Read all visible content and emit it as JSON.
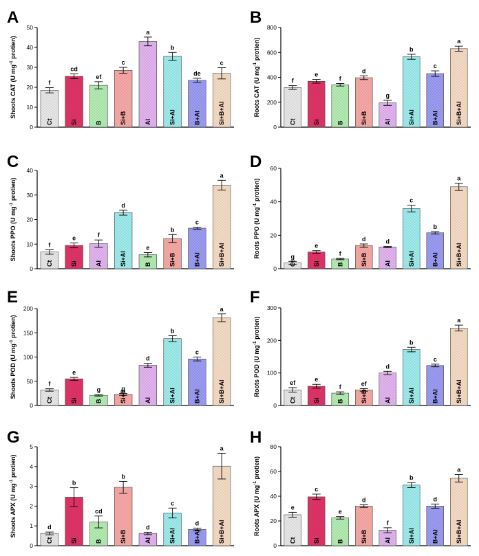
{
  "styles": {
    "Ct": {
      "fill": "#e8e8e8",
      "dot": "#9a9a9a"
    },
    "Si": {
      "fill": "#e03468",
      "dot": "#a01f46"
    },
    "B": {
      "fill": "#b6ecb6",
      "dot": "#5fa85f"
    },
    "Si+B": {
      "fill": "#f4aaa6",
      "dot": "#c86a66"
    },
    "Al": {
      "fill": "#e2b6ef",
      "dot": "#9a6aae"
    },
    "Si+Al": {
      "fill": "#a4ecec",
      "dot": "#3fa0a0"
    },
    "B+Al": {
      "fill": "#9e9ef2",
      "dot": "#5454b4"
    },
    "Si+B+Al": {
      "fill": "#f4dcc6",
      "dot": "#b89676"
    }
  },
  "chart_data": [
    {
      "panel": "A",
      "type": "bar",
      "ylabel_main": "Shoots CAT (U mg",
      "ylabel_sup": "-1",
      "ylabel_tail": " protien)",
      "ylim": [
        0,
        50
      ],
      "yticks": [
        0,
        10,
        20,
        30,
        40,
        50
      ],
      "categories": [
        "Ct",
        "Si",
        "B",
        "Si+B",
        "Al",
        "Si+Al",
        "B+Al",
        "Si+B+Al"
      ],
      "values": [
        18.5,
        25.5,
        21,
        28.5,
        43,
        35.5,
        23.5,
        27
      ],
      "errors": [
        1.3,
        1.2,
        1.8,
        1.5,
        2.2,
        2.0,
        1.0,
        2.8
      ],
      "letters": [
        "f",
        "cd",
        "ef",
        "c",
        "a",
        "b",
        "de",
        "c"
      ]
    },
    {
      "panel": "B",
      "type": "bar",
      "ylabel_main": "Roots CAT (U mg",
      "ylabel_sup": "-1",
      "ylabel_tail": " protien)",
      "ylim": [
        0,
        800
      ],
      "yticks": [
        0,
        200,
        400,
        600,
        800
      ],
      "categories": [
        "Ct",
        "Si",
        "B",
        "Si+B",
        "Al",
        "Si+Al",
        "B+Al",
        "Si+B+Al"
      ],
      "values": [
        318,
        368,
        340,
        397,
        195,
        565,
        430,
        630
      ],
      "errors": [
        15,
        15,
        10,
        15,
        20,
        20,
        22,
        20
      ],
      "letters": [
        "f",
        "e",
        "f",
        "d",
        "g",
        "b",
        "c",
        "a"
      ]
    },
    {
      "panel": "C",
      "type": "bar",
      "ylabel_main": "Shoots PPO (U mg",
      "ylabel_sup": "-1",
      "ylabel_tail": " protien)",
      "ylim": [
        0,
        40
      ],
      "yticks": [
        0,
        10,
        20,
        30,
        40
      ],
      "categories": [
        "Ct",
        "Si",
        "Al",
        "Si+Al",
        "B",
        "Si+B",
        "B+Al",
        "Si+B+Al"
      ],
      "values": [
        6.8,
        9.5,
        10.2,
        22.8,
        5.7,
        12.3,
        16.5,
        34
      ],
      "errors": [
        0.9,
        1.0,
        1.5,
        1.0,
        0.9,
        1.6,
        0.4,
        2.0
      ],
      "letters": [
        "f",
        "e",
        "f",
        "d",
        "e",
        "b",
        "c",
        "a"
      ]
    },
    {
      "panel": "D",
      "type": "bar",
      "ylabel_main": "Roots PPO (U mg",
      "ylabel_sup": "-1",
      "ylabel_tail": " protien)",
      "ylim": [
        0,
        60
      ],
      "yticks": [
        0,
        20,
        40,
        60
      ],
      "categories": [
        "Ct",
        "Si",
        "B",
        "Si+B",
        "Al",
        "Si+Al",
        "B+Al",
        "Si+B+Al"
      ],
      "values": [
        3.5,
        10,
        5.8,
        13.8,
        13,
        36,
        21.5,
        49
      ],
      "errors": [
        0.9,
        0.8,
        0.4,
        1.0,
        0.4,
        2.0,
        0.7,
        2.2
      ],
      "letters": [
        "g",
        "e",
        "f",
        "d",
        "d",
        "c",
        "b",
        "a"
      ]
    },
    {
      "panel": "E",
      "type": "bar",
      "ylabel_main": "Shoots POD (U mg",
      "ylabel_sup": "-1",
      "ylabel_tail": " protien)",
      "ylim": [
        0,
        200
      ],
      "yticks": [
        0,
        50,
        100,
        150,
        200
      ],
      "categories": [
        "Ct",
        "Si",
        "B",
        "Si+B",
        "Al",
        "Si+Al",
        "B+Al",
        "Si+B+Al"
      ],
      "values": [
        32,
        55,
        21,
        23,
        83,
        138,
        96,
        181
      ],
      "errors": [
        2.5,
        3,
        1.5,
        2,
        4,
        6,
        4,
        8
      ],
      "letters": [
        "f",
        "e",
        "g",
        "g",
        "d",
        "b",
        "c",
        "a"
      ]
    },
    {
      "panel": "F",
      "type": "bar",
      "ylabel_main": "Roots POD (U mg",
      "ylabel_sup": "-1",
      "ylabel_tail": " protien)",
      "ylim": [
        0,
        300
      ],
      "yticks": [
        0,
        100,
        200,
        300
      ],
      "categories": [
        "Ct",
        "Si",
        "B",
        "Si+B",
        "Al",
        "Si+Al",
        "B+Al",
        "Si+B+Al"
      ],
      "values": [
        48,
        59,
        38,
        48,
        100,
        172,
        123,
        238
      ],
      "errors": [
        7,
        6,
        4,
        4,
        5,
        7,
        4,
        9
      ],
      "letters": [
        "ef",
        "e",
        "f",
        "ef",
        "d",
        "b",
        "c",
        "a"
      ]
    },
    {
      "panel": "G",
      "type": "bar",
      "ylabel_main": "Shoots APX (U mg",
      "ylabel_sup": "-1",
      "ylabel_tail": " protien)",
      "ylim": [
        0,
        5
      ],
      "yticks": [
        0,
        1,
        2,
        3,
        4,
        5
      ],
      "categories": [
        "Ct",
        "Si",
        "B",
        "Si+B",
        "Al",
        "Si+Al",
        "B+Al",
        "Si+B+Al"
      ],
      "values": [
        0.62,
        2.45,
        1.2,
        2.95,
        0.62,
        1.65,
        0.82,
        4.02
      ],
      "errors": [
        0.07,
        0.48,
        0.3,
        0.3,
        0.06,
        0.25,
        0.07,
        0.65
      ],
      "letters": [
        "d",
        "b",
        "cd",
        "b",
        "d",
        "c",
        "d",
        "a"
      ]
    },
    {
      "panel": "H",
      "type": "bar",
      "ylabel_main": "Roots APX (U mg",
      "ylabel_sup": "-1",
      "ylabel_tail": " protien)",
      "ylim": [
        0,
        80
      ],
      "yticks": [
        0,
        20,
        40,
        60,
        80
      ],
      "categories": [
        "Ct",
        "Si",
        "B",
        "Si+B",
        "Al",
        "Si+Al",
        "B+Al",
        "Si+B+Al"
      ],
      "values": [
        25,
        39.5,
        22.5,
        32,
        12.5,
        49,
        32,
        54.5
      ],
      "errors": [
        2.0,
        2.2,
        1.0,
        1.0,
        2.0,
        2.0,
        1.7,
        3.0
      ],
      "letters": [
        "e",
        "c",
        "e",
        "d",
        "f",
        "b",
        "d",
        "a"
      ]
    }
  ]
}
